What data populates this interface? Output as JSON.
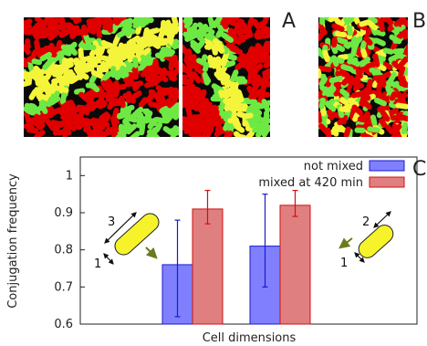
{
  "panels": {
    "a_letter": "A",
    "b_letter": "B",
    "c_letter": "C"
  },
  "colony_colors": {
    "background": "#0a0a0a",
    "red": "#e00000",
    "green": "#6ee843",
    "yellow": "#f4f43a"
  },
  "chart_data": {
    "type": "bar",
    "title": "",
    "xlabel": "Cell dimensions",
    "ylabel": "Conjugation frequency",
    "ylim": [
      0.6,
      1.05
    ],
    "yticks": [
      0.6,
      0.7,
      0.8,
      0.9,
      1
    ],
    "ytick_labels": [
      "0.6",
      "0.7",
      "0.8",
      "0.9",
      "1"
    ],
    "categories": [
      "1 x 3",
      "1 x 2"
    ],
    "series": [
      {
        "name": "not mixed",
        "color": "#8080ff",
        "edge_color": "#1a1ad0",
        "values": [
          0.76,
          0.81
        ],
        "error_low": [
          0.62,
          0.7
        ],
        "error_high": [
          0.88,
          0.95
        ]
      },
      {
        "name": "mixed at 420 min",
        "color": "#e07f7f",
        "edge_color": "#d01010",
        "values": [
          0.91,
          0.92
        ],
        "error_low": [
          0.87,
          0.89
        ],
        "error_high": [
          0.96,
          0.96
        ]
      }
    ],
    "legend_position": "top-right",
    "grid": false,
    "cell_dimension_insets": [
      {
        "long_side": "3",
        "short_side": "1"
      },
      {
        "long_side": "2",
        "short_side": "1"
      }
    ]
  }
}
